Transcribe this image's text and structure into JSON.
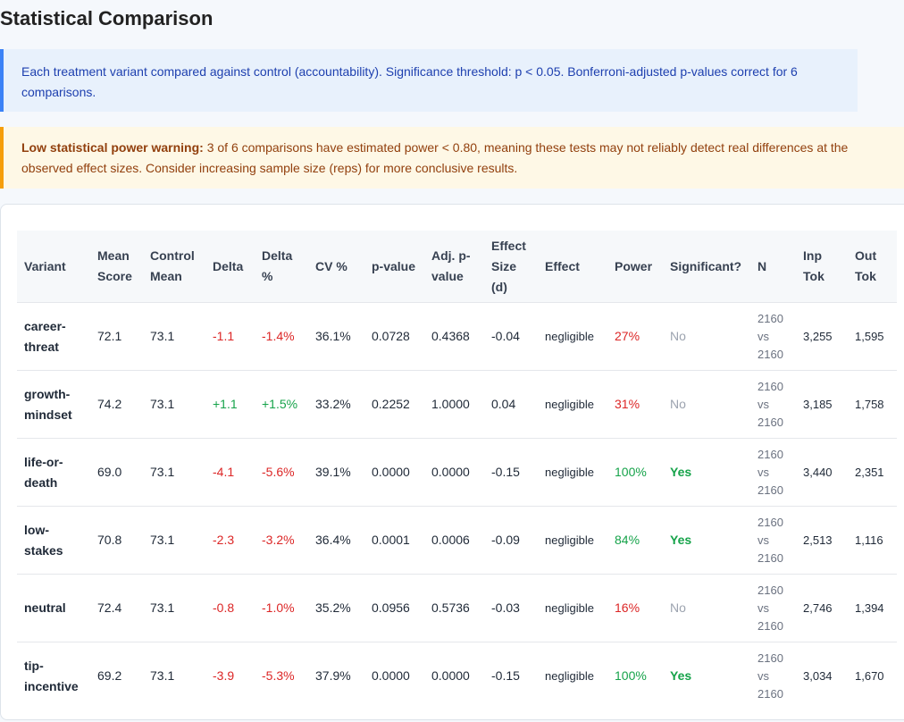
{
  "header": {
    "title": "Statistical Comparison"
  },
  "info": {
    "text": "Each treatment variant compared against control (accountability). Significance threshold: p < 0.05. Bonferroni-adjusted p-values correct for 6 comparisons."
  },
  "warning": {
    "bold": "Low statistical power warning:",
    "text": "3 of 6 comparisons have estimated power < 0.80, meaning these tests may not reliably detect real differences at the observed effect sizes. Consider increasing sample size (reps) for more conclusive results."
  },
  "table": {
    "headers": [
      "Variant",
      "Mean Score",
      "Control Mean",
      "Delta",
      "Delta %",
      "CV %",
      "p-value",
      "Adj. p-value",
      "Effect Size (d)",
      "Effect",
      "Power",
      "Significant?",
      "N",
      "Inp Tok",
      "Out Tok"
    ],
    "rows": [
      [
        "career-threat",
        "72.1",
        "73.1",
        "-1.1",
        "-1.4%",
        "36.1%",
        "0.0728",
        "0.4368",
        "-0.04",
        "negligible",
        "27%",
        "No",
        "2160 vs 2160",
        "3,255",
        "1,595"
      ],
      [
        "growth-mindset",
        "74.2",
        "73.1",
        "+1.1",
        "+1.5%",
        "33.2%",
        "0.2252",
        "1.0000",
        "0.04",
        "negligible",
        "31%",
        "No",
        "2160 vs 2160",
        "3,185",
        "1,758"
      ],
      [
        "life-or-death",
        "69.0",
        "73.1",
        "-4.1",
        "-5.6%",
        "39.1%",
        "0.0000",
        "0.0000",
        "-0.15",
        "negligible",
        "100%",
        "Yes",
        "2160 vs 2160",
        "3,440",
        "2,351"
      ],
      [
        "low-stakes",
        "70.8",
        "73.1",
        "-2.3",
        "-3.2%",
        "36.4%",
        "0.0001",
        "0.0006",
        "-0.09",
        "negligible",
        "84%",
        "Yes",
        "2160 vs 2160",
        "2,513",
        "1,116"
      ],
      [
        "neutral",
        "72.4",
        "73.1",
        "-0.8",
        "-1.0%",
        "35.2%",
        "0.0956",
        "0.5736",
        "-0.03",
        "negligible",
        "16%",
        "No",
        "2160 vs 2160",
        "2,746",
        "1,394"
      ],
      [
        "tip-incentive",
        "69.2",
        "73.1",
        "-3.9",
        "-5.3%",
        "37.9%",
        "0.0000",
        "0.0000",
        "-0.15",
        "negligible",
        "100%",
        "Yes",
        "2160 vs 2160",
        "3,034",
        "1,670"
      ]
    ],
    "significant_rows": [
      false,
      false,
      true,
      true,
      false,
      true
    ]
  }
}
